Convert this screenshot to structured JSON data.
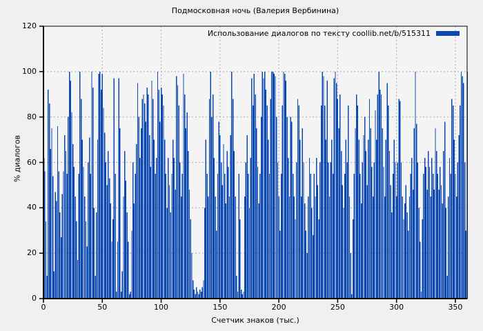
{
  "title": "Подмосковная ночь (Валерия Вербинина)",
  "legend": {
    "label": "Использование диалогов по тексту  coollib.net/b/515311",
    "swatch_color": "#0b49b0"
  },
  "axes": {
    "y_label": "% диалогов",
    "x_label": "Счетчик знаков (тыс.)",
    "y_ticks": [
      0,
      20,
      40,
      60,
      80,
      100,
      120
    ],
    "x_ticks": [
      0,
      50,
      100,
      150,
      200,
      250,
      300,
      350
    ]
  },
  "colors": {
    "bar": "#0b49b0",
    "background": "#f0f0f0",
    "plot_background": "#f4f4f4",
    "grid": "#a8a8a8",
    "border": "#000000"
  },
  "chart_data": {
    "type": "bar",
    "title": "Подмосковная ночь (Валерия Вербинина)",
    "xlabel": "Счетчик знаков (тыс.)",
    "ylabel": "% диалогов",
    "series_name": "Использование диалогов по тексту  coollib.net/b/515311",
    "xlim": [
      0,
      360
    ],
    "ylim": [
      0,
      120
    ],
    "grid": true,
    "legend_position": "top-right",
    "x_start": 0,
    "x_step": 1,
    "values": [
      62,
      56,
      34,
      10,
      92,
      86,
      66,
      75,
      54,
      12,
      47,
      43,
      76,
      56,
      38,
      27,
      46,
      56,
      72,
      65,
      55,
      80,
      100,
      96,
      82,
      68,
      58,
      45,
      34,
      17,
      55,
      100,
      88,
      70,
      58,
      45,
      34,
      23,
      60,
      71,
      55,
      100,
      93,
      40,
      10,
      38,
      70,
      99,
      100,
      92,
      99,
      84,
      73,
      60,
      50,
      65,
      53,
      42,
      25,
      35,
      97,
      55,
      3,
      25,
      97,
      75,
      3,
      12,
      45,
      65,
      52,
      38,
      25,
      2,
      3,
      30,
      60,
      42,
      55,
      68,
      95,
      80,
      62,
      75,
      88,
      90,
      86,
      78,
      93,
      90,
      72,
      58,
      96,
      88,
      70,
      55,
      62,
      100,
      92,
      78,
      93,
      90,
      85,
      70,
      55,
      40,
      62,
      50,
      38,
      55,
      70,
      62,
      48,
      98,
      94,
      85,
      60,
      45,
      55,
      99,
      90,
      75,
      82,
      65,
      48,
      35,
      20,
      8,
      4,
      2,
      5,
      3,
      2,
      4,
      3,
      5,
      8,
      40,
      70,
      55,
      45,
      88,
      100,
      80,
      90,
      62,
      45,
      30,
      55,
      78,
      72,
      60,
      50,
      68,
      55,
      42,
      65,
      58,
      45,
      72,
      100,
      88,
      65,
      45,
      10,
      3,
      55,
      35,
      4,
      2,
      3,
      45,
      60,
      72,
      55,
      40,
      62,
      97,
      85,
      99,
      90,
      75,
      58,
      42,
      55,
      80,
      100,
      97,
      100,
      92,
      85,
      70,
      55,
      88,
      100,
      100,
      99,
      98,
      80,
      60,
      45,
      30,
      55,
      85,
      100,
      99,
      96,
      80,
      62,
      45,
      80,
      78,
      55,
      45,
      35,
      60,
      88,
      85,
      70,
      45,
      75,
      60,
      42,
      30,
      20,
      45,
      62,
      55,
      40,
      28,
      55,
      45,
      62,
      50,
      35,
      60,
      85,
      100,
      98,
      85,
      70,
      96,
      60,
      45,
      60,
      70,
      55,
      97,
      100,
      95,
      88,
      75,
      90,
      65,
      50,
      40,
      55,
      70,
      60,
      85,
      45,
      20,
      2,
      35,
      55,
      75,
      90,
      85,
      70,
      55,
      42,
      60,
      72,
      80,
      65,
      50,
      70,
      88,
      75,
      58,
      45,
      60,
      83,
      70,
      90,
      100,
      92,
      90,
      75,
      58,
      45,
      70,
      95,
      85,
      65,
      50,
      38,
      55,
      70,
      60,
      45,
      60,
      88,
      87,
      60,
      45,
      35,
      42,
      50,
      38,
      30,
      45,
      55,
      62,
      48,
      75,
      100,
      77,
      60,
      40,
      25,
      3,
      35,
      55,
      62,
      58,
      48,
      65,
      58,
      45,
      62,
      55,
      48,
      75,
      65,
      55,
      48,
      58,
      50,
      42,
      65,
      78,
      40,
      10,
      45,
      62,
      55,
      88,
      85,
      70,
      55,
      45,
      60,
      72,
      85,
      100,
      98,
      95,
      60,
      30,
      100
    ]
  }
}
